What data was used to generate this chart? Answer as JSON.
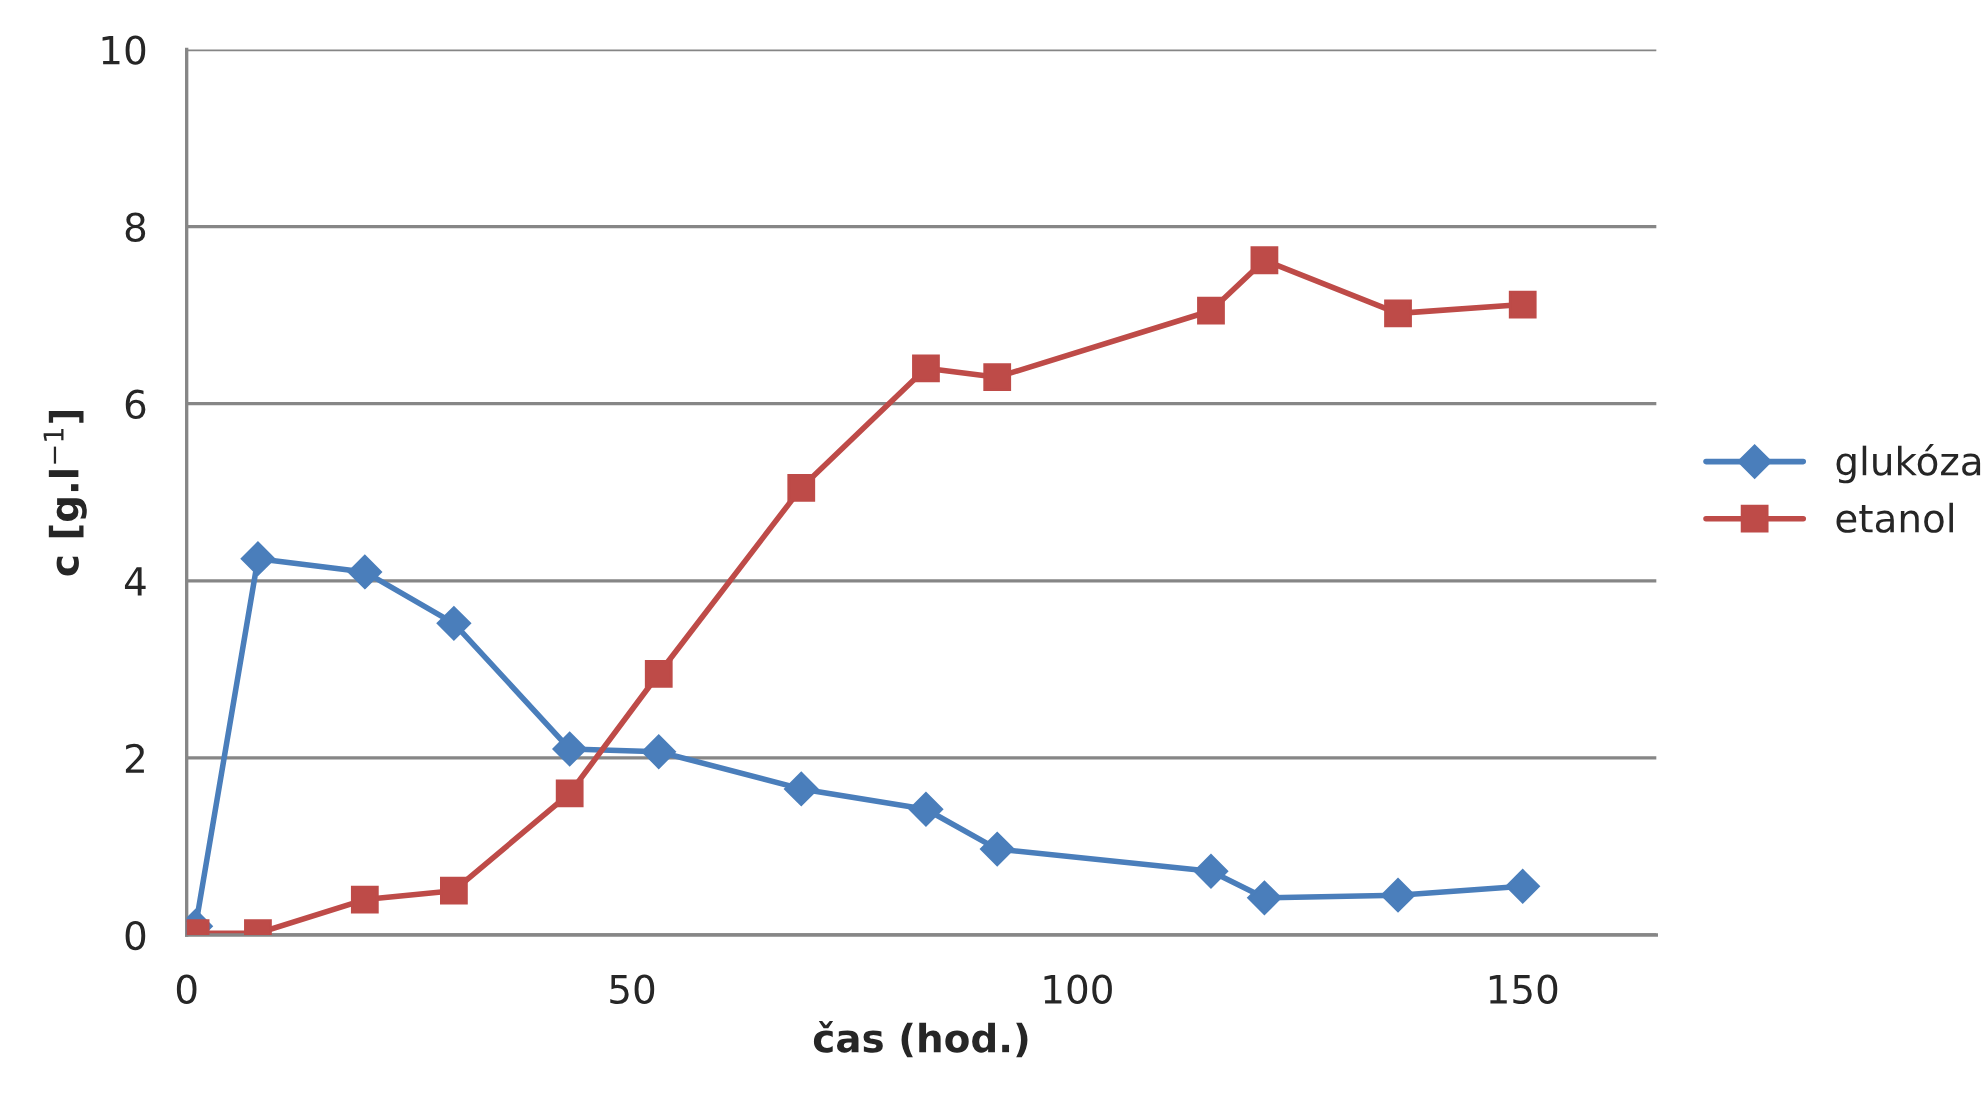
{
  "chart_data": {
    "type": "line",
    "xlabel": "čas (hod.)",
    "ylabel": "c [g.l$^{−1}$]",
    "xlim": [
      0,
      165
    ],
    "xticks": [
      0,
      50,
      100,
      150
    ],
    "ylim": [
      0,
      10
    ],
    "yticks": [
      0,
      2,
      4,
      6,
      8,
      10
    ],
    "grid": "y",
    "legend": "right",
    "series": [
      {
        "name": "glukóza",
        "color": "#4a7ebb",
        "marker": "diamond",
        "x": [
          1,
          8,
          20,
          30,
          43,
          53,
          69,
          83,
          91,
          115,
          121,
          136,
          150
        ],
        "values": [
          0.1,
          4.25,
          4.1,
          3.52,
          2.1,
          2.07,
          1.65,
          1.42,
          0.97,
          0.72,
          0.42,
          0.45,
          0.55
        ]
      },
      {
        "name": "etanol",
        "color": "#be4b48",
        "marker": "square",
        "x": [
          1,
          8,
          20,
          30,
          43,
          53,
          69,
          83,
          91,
          115,
          121,
          136,
          150
        ],
        "values": [
          0.02,
          0.02,
          0.4,
          0.5,
          1.6,
          2.95,
          5.05,
          6.4,
          6.3,
          7.05,
          7.62,
          7.02,
          7.12
        ]
      }
    ]
  }
}
